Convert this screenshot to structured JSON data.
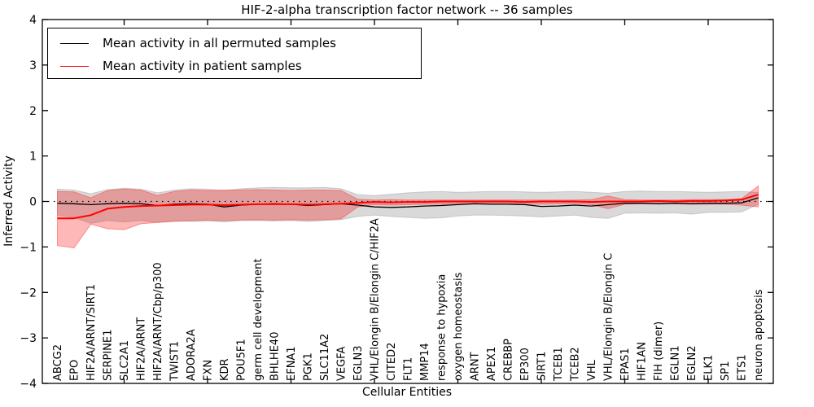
{
  "chart_data": {
    "type": "line",
    "title": "HIF-2-alpha transcription factor network -- 36 samples",
    "xlabel": "Cellular Entities",
    "ylabel": "Inferred Activity",
    "ylim": [
      -4,
      4
    ],
    "yticks": [
      -4,
      -3,
      -2,
      -1,
      0,
      1,
      2,
      3,
      4
    ],
    "grid": false,
    "legend_position": "upper left",
    "zero_line": {
      "style": "dotted",
      "color": "#000000",
      "y": 0
    },
    "categories": [
      "ABCG2",
      "EPO",
      "HIF2A/ARNT/SIRT1",
      "SERPINE1",
      "SLC2A1",
      "HIF2A/ARNT",
      "HIF2A/ARNT/Cbp/p300",
      "TWIST1",
      "ADORA2A",
      "FXN",
      "KDR",
      "POU5F1",
      "germ cell development",
      "BHLHE40",
      "EFNA1",
      "PGK1",
      "SLC11A2",
      "VEGFA",
      "EGLN3",
      "VHL/Elongin B/Elongin C/HIF2A",
      "CITED2",
      "FLT1",
      "MMP14",
      "response to hypoxia",
      "oxygen homeostasis",
      "ARNT",
      "APEX1",
      "CREBBP",
      "EP300",
      "SIRT1",
      "TCEB1",
      "TCEB2",
      "VHL",
      "VHL/Elongin B/Elongin C",
      "EPAS1",
      "HIF1AN",
      "FIH (dimer)",
      "EGLN1",
      "EGLN2",
      "ELK1",
      "SP1",
      "ETS1",
      "neuron apoptosis"
    ],
    "series": [
      {
        "name": "Mean activity in all permuted samples",
        "color": "#000000",
        "line_width": 1.3,
        "values": [
          -0.04,
          -0.05,
          -0.07,
          -0.05,
          -0.04,
          -0.05,
          -0.09,
          -0.06,
          -0.05,
          -0.06,
          -0.12,
          -0.08,
          -0.06,
          -0.05,
          -0.06,
          -0.09,
          -0.07,
          -0.05,
          -0.08,
          -0.12,
          -0.13,
          -0.12,
          -0.1,
          -0.09,
          -0.07,
          -0.05,
          -0.06,
          -0.06,
          -0.07,
          -0.11,
          -0.1,
          -0.08,
          -0.1,
          -0.07,
          -0.04,
          -0.04,
          -0.05,
          -0.04,
          -0.05,
          -0.04,
          -0.04,
          -0.03,
          0.08
        ],
        "band": {
          "fill": "rgba(140,140,140,0.33)",
          "edge": "rgba(120,120,120,0.30)",
          "upper": [
            0.27,
            0.25,
            0.17,
            0.26,
            0.29,
            0.27,
            0.19,
            0.25,
            0.28,
            0.27,
            0.24,
            0.28,
            0.3,
            0.31,
            0.3,
            0.3,
            0.31,
            0.28,
            0.15,
            0.13,
            0.16,
            0.19,
            0.21,
            0.22,
            0.2,
            0.21,
            0.22,
            0.22,
            0.21,
            0.2,
            0.21,
            0.22,
            0.2,
            0.18,
            0.22,
            0.23,
            0.22,
            0.22,
            0.21,
            0.2,
            0.21,
            0.22,
            0.2
          ],
          "lower": [
            -0.3,
            -0.35,
            -0.48,
            -0.42,
            -0.45,
            -0.42,
            -0.46,
            -0.42,
            -0.44,
            -0.43,
            -0.45,
            -0.42,
            -0.42,
            -0.43,
            -0.42,
            -0.44,
            -0.42,
            -0.4,
            -0.33,
            -0.3,
            -0.33,
            -0.35,
            -0.37,
            -0.36,
            -0.32,
            -0.3,
            -0.3,
            -0.31,
            -0.32,
            -0.34,
            -0.32,
            -0.3,
            -0.35,
            -0.37,
            -0.26,
            -0.25,
            -0.26,
            -0.25,
            -0.28,
            -0.24,
            -0.24,
            -0.23,
            -0.06
          ]
        }
      },
      {
        "name": "Mean activity in patient samples",
        "color": "#ff0000",
        "line_width": 2,
        "values": [
          -0.37,
          -0.37,
          -0.3,
          -0.16,
          -0.12,
          -0.1,
          -0.09,
          -0.08,
          -0.07,
          -0.07,
          -0.08,
          -0.07,
          -0.06,
          -0.06,
          -0.06,
          -0.07,
          -0.06,
          -0.05,
          -0.03,
          -0.01,
          -0.02,
          -0.01,
          -0.01,
          0.0,
          0.0,
          0.0,
          0.0,
          0.0,
          -0.01,
          0.0,
          0.0,
          0.0,
          -0.01,
          0.0,
          0.0,
          0.0,
          0.01,
          0.0,
          0.01,
          0.01,
          0.02,
          0.04,
          0.15
        ],
        "band": {
          "fill": "rgba(255,0,0,0.28)",
          "edge": "rgba(255,70,70,0.55)",
          "upper": [
            0.22,
            0.21,
            0.08,
            0.24,
            0.27,
            0.25,
            0.13,
            0.22,
            0.25,
            0.24,
            0.25,
            0.25,
            0.26,
            0.25,
            0.24,
            0.25,
            0.25,
            0.24,
            0.05,
            0.03,
            0.04,
            0.03,
            0.03,
            0.03,
            0.03,
            0.03,
            0.03,
            0.03,
            0.03,
            0.03,
            0.03,
            0.03,
            0.04,
            0.12,
            0.04,
            0.03,
            0.03,
            0.03,
            0.04,
            0.04,
            0.04,
            0.06,
            0.34
          ],
          "lower": [
            -0.97,
            -1.02,
            -0.5,
            -0.6,
            -0.62,
            -0.49,
            -0.46,
            -0.44,
            -0.42,
            -0.41,
            -0.42,
            -0.41,
            -0.4,
            -0.41,
            -0.4,
            -0.41,
            -0.4,
            -0.38,
            -0.12,
            -0.07,
            -0.08,
            -0.07,
            -0.06,
            -0.06,
            -0.05,
            -0.05,
            -0.05,
            -0.05,
            -0.06,
            -0.06,
            -0.05,
            -0.05,
            -0.07,
            -0.16,
            -0.06,
            -0.05,
            -0.05,
            -0.05,
            -0.06,
            -0.06,
            -0.06,
            -0.08,
            -0.12
          ]
        }
      }
    ]
  }
}
